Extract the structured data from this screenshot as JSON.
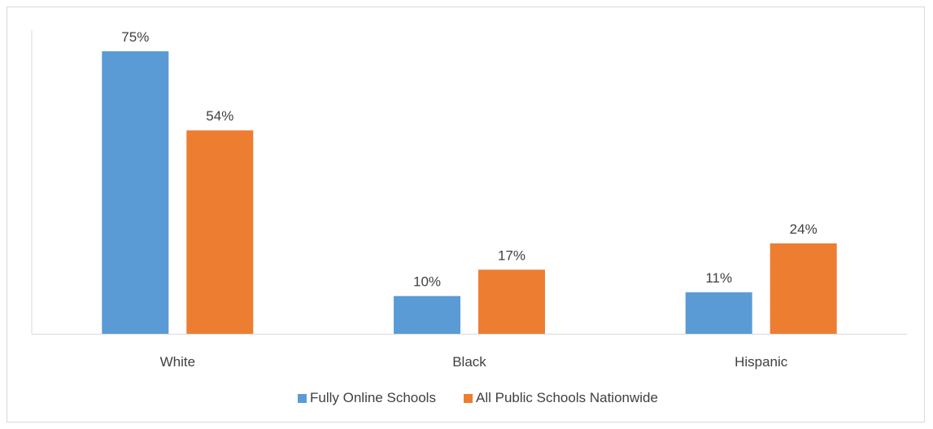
{
  "chart_data": {
    "type": "bar",
    "categories": [
      "White",
      "Black",
      "Hispanic"
    ],
    "series": [
      {
        "name": "Fully Online Schools",
        "values": [
          75,
          10,
          11
        ],
        "labels": [
          "75%",
          "10%",
          "11%"
        ],
        "color": "#5b9bd5"
      },
      {
        "name": "All Public Schools Nationwide",
        "values": [
          54,
          17,
          24
        ],
        "labels": [
          "54%",
          "17%",
          "24%"
        ],
        "color": "#ed7d31"
      }
    ],
    "title": "",
    "xlabel": "",
    "ylabel": "",
    "value_unit": "%",
    "ylim": [
      0,
      80
    ],
    "grid": false,
    "legend_position": "bottom"
  },
  "colors": {
    "axis": "#d9d9d9",
    "text": "#404040",
    "frame_border": "#d9d9d9"
  }
}
